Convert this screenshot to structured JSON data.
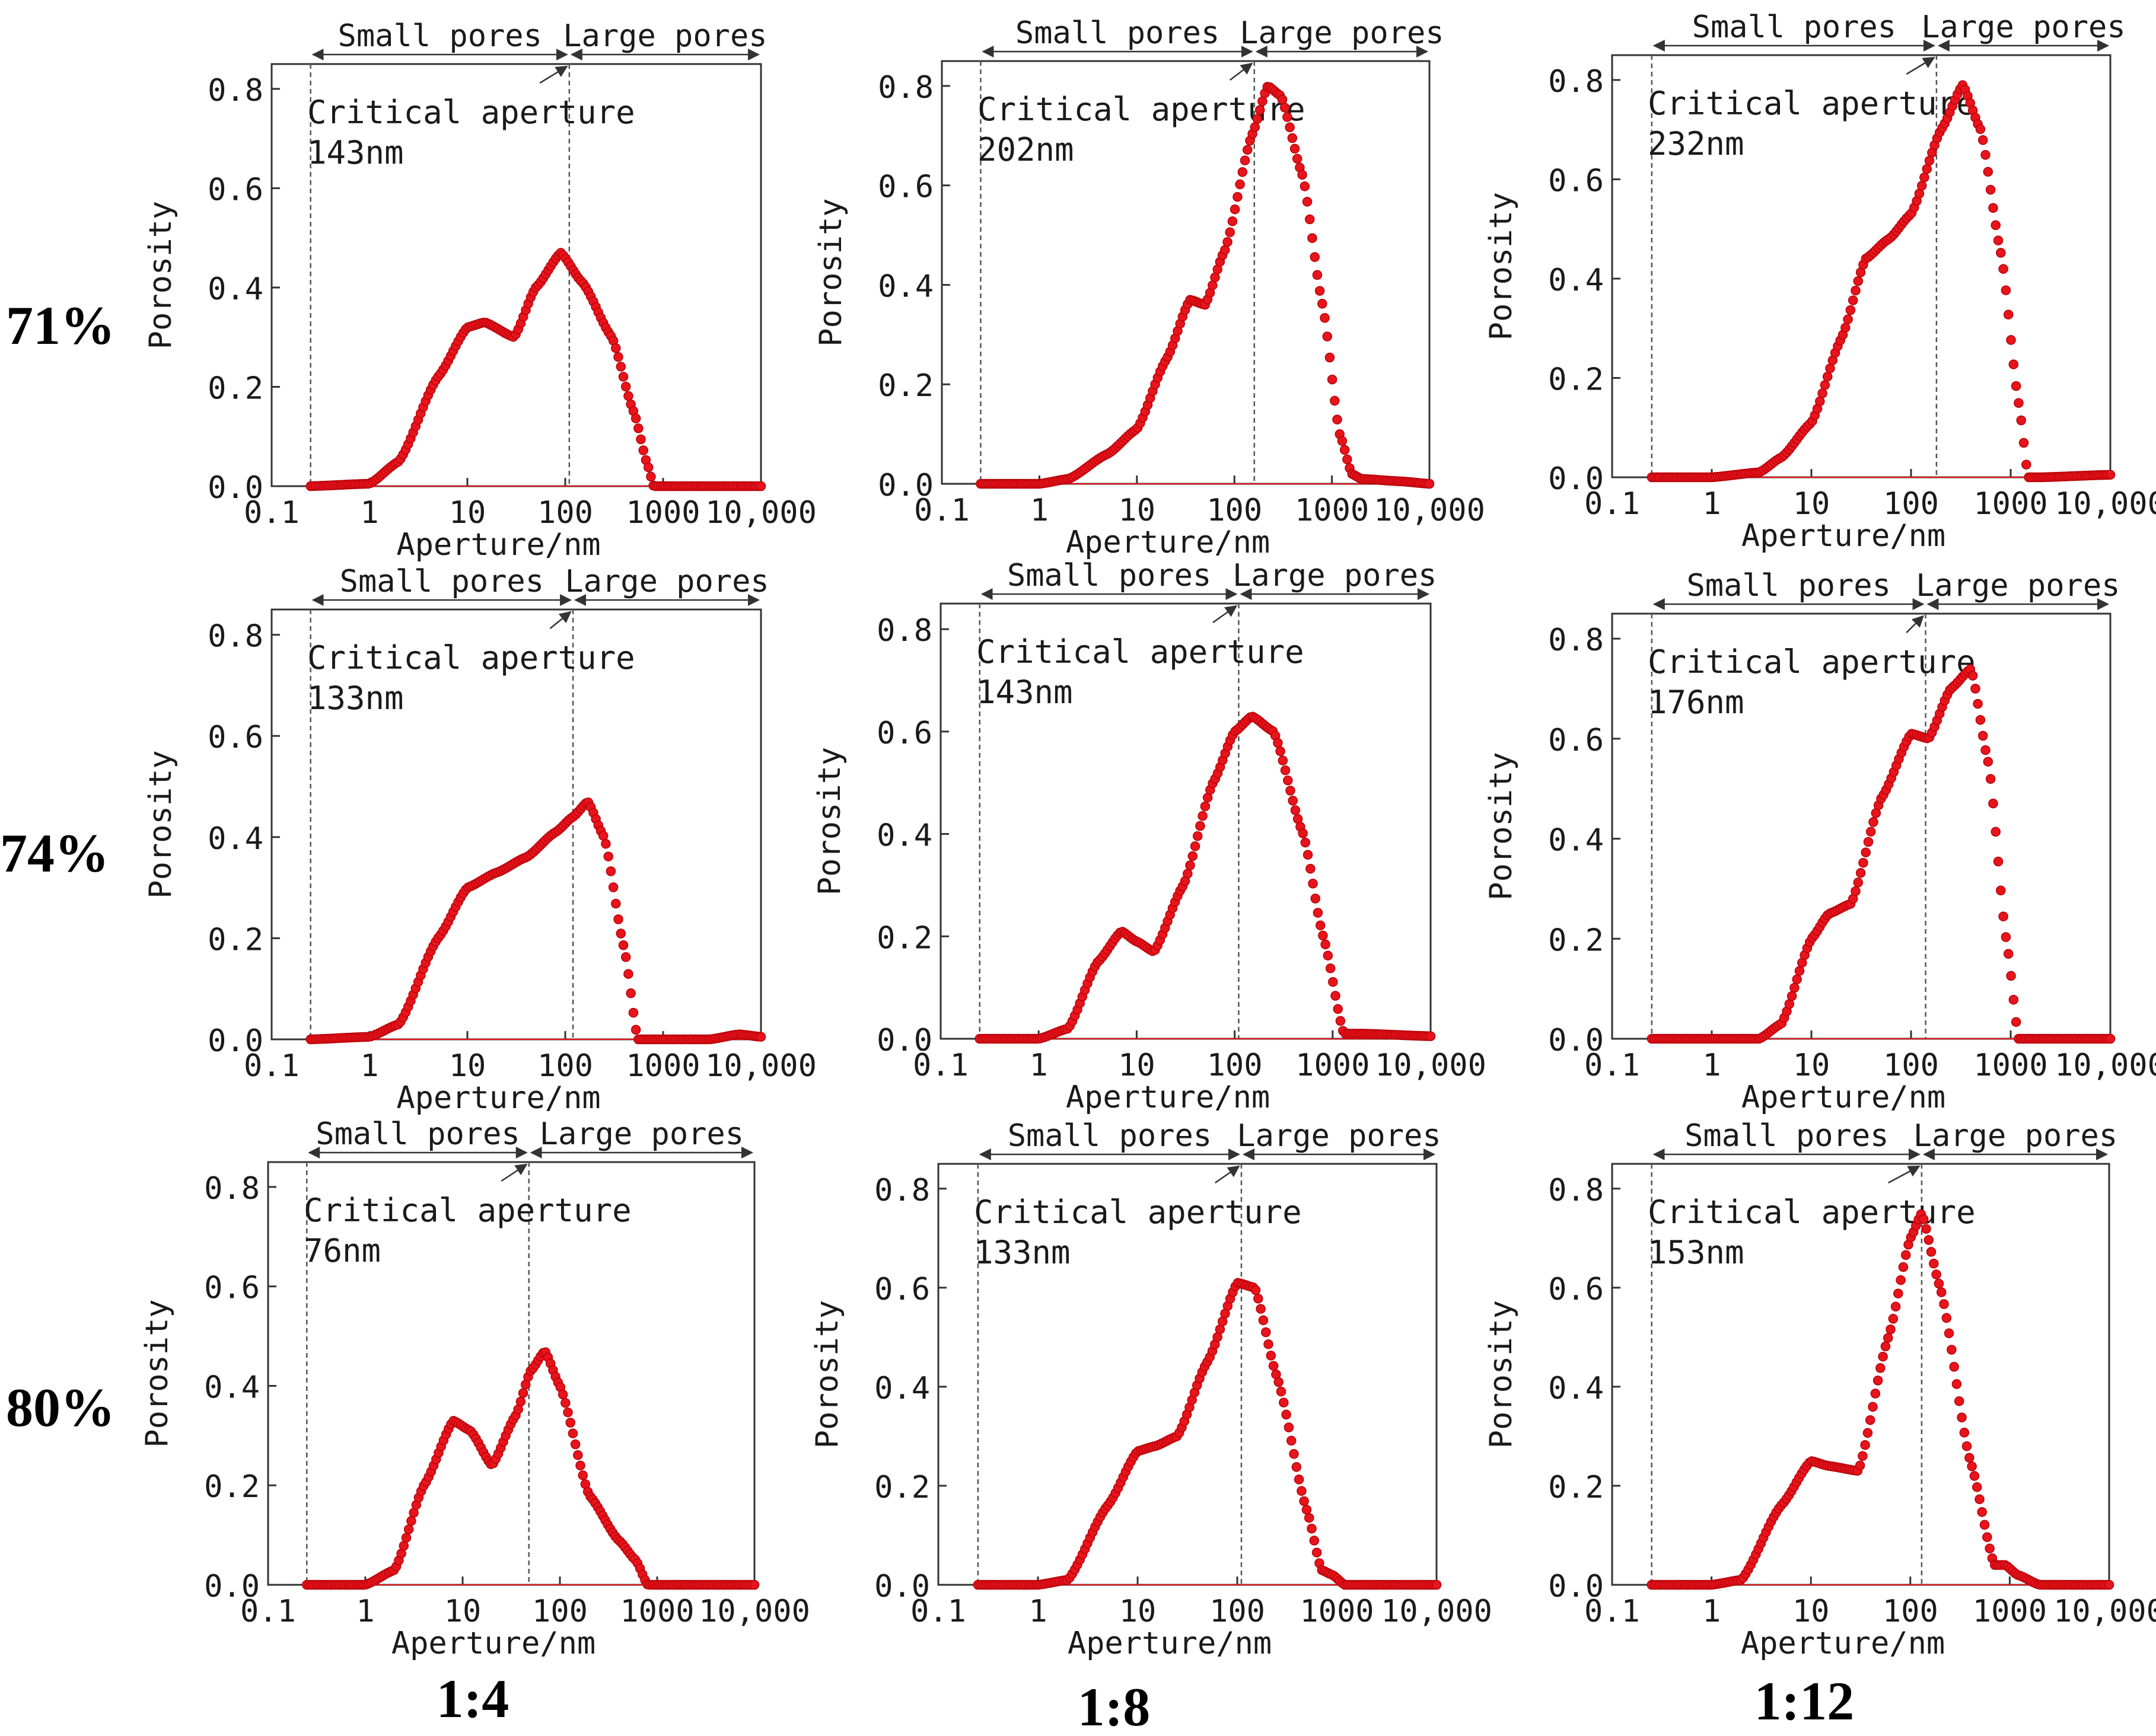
{
  "figure": {
    "row_labels": [
      "71%",
      "74%",
      "80%"
    ],
    "col_labels": [
      "1:4",
      "1:8",
      "1:12"
    ],
    "colors": {
      "marker": "#e8141c",
      "marker_edge": "#b80008",
      "axis": "#333333",
      "text": "#1a1a1a"
    }
  },
  "chart_data": [
    {
      "type": "scatter",
      "row": 0,
      "col": 0,
      "title": "",
      "xlabel": "Aperture/nm",
      "ylabel": "Porosity",
      "xscale": "log",
      "xlim": [
        0.1,
        10000
      ],
      "ylim": [
        0,
        0.85
      ],
      "xticks": [
        "0.1",
        "1",
        "10",
        "100",
        "1000",
        "10,000"
      ],
      "yticks": [
        "0.0",
        "0.2",
        "0.4",
        "0.6",
        "0.8"
      ],
      "small_pores_label": "Small pores",
      "large_pores_label": "Large pores",
      "critical_label": "Critical aperture",
      "critical_value": "143nm",
      "divider_left": 0.25,
      "critical_aperture": 110,
      "arrow_tail": 55,
      "series": [
        {
          "name": "Porosity",
          "x": [
            0.25,
            1,
            2,
            5,
            10,
            15,
            30,
            50,
            90,
            150,
            300,
            500,
            700,
            800,
            1000,
            10000
          ],
          "y": [
            0.0,
            0.005,
            0.05,
            0.22,
            0.32,
            0.33,
            0.3,
            0.4,
            0.47,
            0.41,
            0.3,
            0.15,
            0.04,
            0.0,
            0.0,
            0.0
          ]
        }
      ]
    },
    {
      "type": "scatter",
      "row": 0,
      "col": 1,
      "title": "",
      "xlabel": "Aperture/nm",
      "ylabel": "Porosity",
      "xscale": "log",
      "xlim": [
        0.1,
        10000
      ],
      "ylim": [
        0,
        0.85
      ],
      "xticks": [
        "0.1",
        "1",
        "10",
        "100",
        "1000",
        "10,000"
      ],
      "yticks": [
        "0.0",
        "0.2",
        "0.4",
        "0.6",
        "0.8"
      ],
      "small_pores_label": "Small pores",
      "large_pores_label": "Large pores",
      "critical_label": "Critical aperture",
      "critical_value": "202nm",
      "divider_left": 0.25,
      "critical_aperture": 160,
      "arrow_tail": 90,
      "series": [
        {
          "name": "Porosity",
          "x": [
            0.25,
            1,
            2,
            5,
            10,
            20,
            35,
            50,
            80,
            150,
            220,
            300,
            500,
            800,
            1200,
            1600,
            2000,
            5000,
            10000
          ],
          "y": [
            0.0,
            0.0,
            0.01,
            0.06,
            0.11,
            0.25,
            0.37,
            0.36,
            0.47,
            0.7,
            0.8,
            0.78,
            0.62,
            0.36,
            0.1,
            0.02,
            0.01,
            0.005,
            0.0
          ]
        }
      ]
    },
    {
      "type": "scatter",
      "row": 0,
      "col": 2,
      "title": "",
      "xlabel": "Aperture/nm",
      "ylabel": "Porosity",
      "xscale": "log",
      "xlim": [
        0.1,
        10000
      ],
      "ylim": [
        0,
        0.85
      ],
      "xticks": [
        "0.1",
        "1",
        "10",
        "100",
        "1000",
        "10,000"
      ],
      "yticks": [
        "0.0",
        "0.2",
        "0.4",
        "0.6",
        "0.8"
      ],
      "small_pores_label": "Small pores",
      "large_pores_label": "Large pores",
      "critical_label": "Critical aperture",
      "critical_value": "232nm",
      "divider_left": 0.25,
      "critical_aperture": 180,
      "arrow_tail": 90,
      "series": [
        {
          "name": "Porosity",
          "x": [
            0.25,
            1,
            3,
            5,
            10,
            20,
            35,
            60,
            100,
            200,
            330,
            500,
            800,
            1200,
            1500,
            2000,
            10000
          ],
          "y": [
            0.0,
            0.0,
            0.01,
            0.04,
            0.11,
            0.28,
            0.44,
            0.48,
            0.53,
            0.7,
            0.79,
            0.7,
            0.45,
            0.15,
            0.0,
            0.0,
            0.005
          ]
        }
      ]
    },
    {
      "type": "scatter",
      "row": 1,
      "col": 0,
      "title": "",
      "xlabel": "Aperture/nm",
      "ylabel": "Porosity",
      "xscale": "log",
      "xlim": [
        0.1,
        10000
      ],
      "ylim": [
        0,
        0.85
      ],
      "xticks": [
        "0.1",
        "1",
        "10",
        "100",
        "1000",
        "10,000"
      ],
      "yticks": [
        "0.0",
        "0.2",
        "0.4",
        "0.6",
        "0.8"
      ],
      "small_pores_label": "Small pores",
      "large_pores_label": "Large pores",
      "critical_label": "Critical aperture",
      "critical_value": "133nm",
      "divider_left": 0.25,
      "critical_aperture": 120,
      "arrow_tail": 70,
      "series": [
        {
          "name": "Porosity",
          "x": [
            0.25,
            1,
            2,
            5,
            10,
            20,
            40,
            80,
            120,
            170,
            250,
            400,
            550,
            1000,
            3000,
            6000,
            10000
          ],
          "y": [
            0.0,
            0.005,
            0.03,
            0.2,
            0.3,
            0.33,
            0.36,
            0.41,
            0.44,
            0.47,
            0.4,
            0.18,
            0.0,
            0.0,
            0.0,
            0.01,
            0.005
          ]
        }
      ]
    },
    {
      "type": "scatter",
      "row": 1,
      "col": 1,
      "title": "",
      "xlabel": "Aperture/nm",
      "ylabel": "Porosity",
      "xscale": "log",
      "xlim": [
        0.1,
        10000
      ],
      "ylim": [
        0,
        0.85
      ],
      "xticks": [
        "0.1",
        "1",
        "10",
        "100",
        "1000",
        "10,000"
      ],
      "yticks": [
        "0.0",
        "0.2",
        "0.4",
        "0.6",
        "0.8"
      ],
      "small_pores_label": "Small pores",
      "large_pores_label": "Large pores",
      "critical_label": "Critical aperture",
      "critical_value": "143nm",
      "divider_left": 0.25,
      "critical_aperture": 110,
      "arrow_tail": 60,
      "series": [
        {
          "name": "Porosity",
          "x": [
            0.25,
            1,
            2,
            4,
            7,
            10,
            15,
            30,
            60,
            100,
            150,
            250,
            500,
            800,
            1300,
            2000,
            10000
          ],
          "y": [
            0.0,
            0.0,
            0.02,
            0.15,
            0.21,
            0.19,
            0.17,
            0.3,
            0.5,
            0.6,
            0.63,
            0.6,
            0.4,
            0.2,
            0.01,
            0.01,
            0.005
          ]
        }
      ]
    },
    {
      "type": "scatter",
      "row": 1,
      "col": 2,
      "title": "",
      "xlabel": "Aperture/nm",
      "ylabel": "Porosity",
      "xscale": "log",
      "xlim": [
        0.1,
        10000
      ],
      "ylim": [
        0,
        0.85
      ],
      "xticks": [
        "0.1",
        "1",
        "10",
        "100",
        "1000",
        "10,000"
      ],
      "yticks": [
        "0.0",
        "0.2",
        "0.4",
        "0.6",
        "0.8"
      ],
      "small_pores_label": "Small pores",
      "large_pores_label": "Large pores",
      "critical_label": "Critical aperture",
      "critical_value": "176nm",
      "divider_left": 0.25,
      "critical_aperture": 140,
      "arrow_tail": 90,
      "series": [
        {
          "name": "Porosity",
          "x": [
            0.25,
            1,
            3,
            5,
            10,
            15,
            25,
            50,
            100,
            150,
            250,
            400,
            600,
            900,
            1200,
            10000
          ],
          "y": [
            0.0,
            0.0,
            0.0,
            0.03,
            0.2,
            0.25,
            0.27,
            0.48,
            0.61,
            0.6,
            0.7,
            0.74,
            0.55,
            0.2,
            0.0,
            0.0
          ]
        }
      ]
    },
    {
      "type": "scatter",
      "row": 2,
      "col": 0,
      "title": "",
      "xlabel": "Aperture/nm",
      "ylabel": "Porosity",
      "xscale": "log",
      "xlim": [
        0.1,
        10000
      ],
      "ylim": [
        0,
        0.85
      ],
      "xticks": [
        "0.1",
        "1",
        "10",
        "100",
        "1000",
        "10,000"
      ],
      "yticks": [
        "0.0",
        "0.2",
        "0.4",
        "0.6",
        "0.8"
      ],
      "small_pores_label": "Small pores",
      "large_pores_label": "Large pores",
      "critical_label": "Critical aperture",
      "critical_value": "76nm",
      "divider_left": 0.25,
      "critical_aperture": 48,
      "arrow_tail": 25,
      "series": [
        {
          "name": "Porosity",
          "x": [
            0.25,
            1,
            2,
            4,
            8,
            12,
            20,
            35,
            50,
            70,
            100,
            200,
            400,
            600,
            800,
            10000
          ],
          "y": [
            0.0,
            0.0,
            0.03,
            0.2,
            0.33,
            0.31,
            0.24,
            0.34,
            0.43,
            0.47,
            0.4,
            0.18,
            0.09,
            0.05,
            0.0,
            0.0
          ]
        }
      ]
    },
    {
      "type": "scatter",
      "row": 2,
      "col": 1,
      "title": "",
      "xlabel": "Aperture/nm",
      "ylabel": "Porosity",
      "xscale": "log",
      "xlim": [
        0.1,
        10000
      ],
      "ylim": [
        0,
        0.85
      ],
      "xticks": [
        "0.1",
        "1",
        "10",
        "100",
        "1000",
        "10,000"
      ],
      "yticks": [
        "0.0",
        "0.2",
        "0.4",
        "0.6",
        "0.8"
      ],
      "small_pores_label": "Small pores",
      "large_pores_label": "Large pores",
      "critical_label": "Critical aperture",
      "critical_value": "133nm",
      "divider_left": 0.25,
      "critical_aperture": 110,
      "arrow_tail": 60,
      "series": [
        {
          "name": "Porosity",
          "x": [
            0.25,
            1,
            2,
            5,
            10,
            15,
            25,
            50,
            100,
            150,
            250,
            500,
            700,
            900,
            1200,
            10000
          ],
          "y": [
            0.0,
            0.0,
            0.01,
            0.16,
            0.27,
            0.28,
            0.3,
            0.45,
            0.61,
            0.6,
            0.42,
            0.15,
            0.03,
            0.02,
            0.0,
            0.0
          ]
        }
      ]
    },
    {
      "type": "scatter",
      "row": 2,
      "col": 2,
      "title": "",
      "xlabel": "Aperture/nm",
      "ylabel": "Porosity",
      "xscale": "log",
      "xlim": [
        0.1,
        10000
      ],
      "ylim": [
        0,
        0.85
      ],
      "xticks": [
        "0.1",
        "1",
        "10",
        "100",
        "1000",
        "10,000"
      ],
      "yticks": [
        "0.0",
        "0.2",
        "0.4",
        "0.6",
        "0.8"
      ],
      "small_pores_label": "Small pores",
      "large_pores_label": "Large pores",
      "critical_label": "Critical aperture",
      "critical_value": "153nm",
      "divider_left": 0.25,
      "critical_aperture": 130,
      "arrow_tail": 60,
      "series": [
        {
          "name": "Porosity",
          "x": [
            0.25,
            1,
            2,
            5,
            10,
            15,
            30,
            60,
            100,
            130,
            200,
            400,
            700,
            900,
            1200,
            2000,
            10000
          ],
          "y": [
            0.0,
            0.0,
            0.01,
            0.16,
            0.25,
            0.24,
            0.23,
            0.5,
            0.7,
            0.75,
            0.6,
            0.25,
            0.04,
            0.04,
            0.02,
            0.0,
            0.0
          ]
        }
      ]
    }
  ]
}
